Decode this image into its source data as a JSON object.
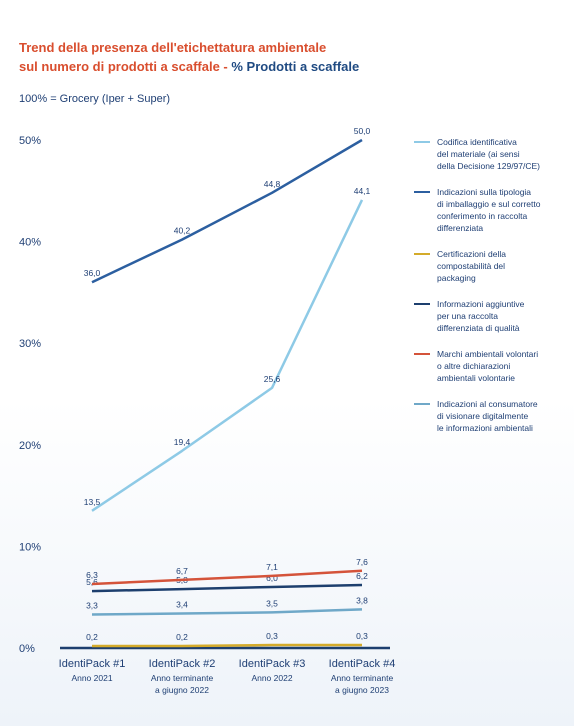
{
  "title": {
    "line1": "Trend della presenza dell'etichettatura ambientale",
    "line2_main": "sul numero di prodotti a scaffale - ",
    "line2_sub": "% Prodotti a scaffale"
  },
  "note": "100% = Grocery (Iper + Super)",
  "chart_data": {
    "type": "line",
    "title": "Trend della presenza dell'etichettatura ambientale sul numero di prodotti a scaffale - % Prodotti a scaffale",
    "ylim": [
      0,
      50
    ],
    "yticks": [
      0,
      10,
      20,
      30,
      40,
      50
    ],
    "ytick_labels": [
      "0%",
      "10%",
      "20%",
      "30%",
      "40%",
      "50%"
    ],
    "categories": [
      {
        "label": "IdentiPack #1",
        "sub": [
          "Anno 2021"
        ]
      },
      {
        "label": "IdentiPack #2",
        "sub": [
          "Anno terminante",
          "a giugno 2022"
        ]
      },
      {
        "label": "IdentiPack #3",
        "sub": [
          "Anno 2022"
        ]
      },
      {
        "label": "IdentiPack #4",
        "sub": [
          "Anno terminante",
          "a giugno 2023"
        ]
      }
    ],
    "legend_position": "right",
    "series": [
      {
        "name": "Codifica identificativa del materiale (ai sensi della Decisione 129/97/CE)",
        "legend_lines": [
          "Codifica identificativa",
          "del materiale (ai sensi",
          "della Decisione 129/97/CE)"
        ],
        "color": "#8ecae6",
        "values": [
          13.5,
          19.4,
          25.6,
          44.1
        ],
        "labels": [
          "13,5",
          "19,4",
          "25,6",
          "44,1"
        ]
      },
      {
        "name": "Indicazioni sulla tipologia di imballaggio e sul corretto conferimento in raccolta differenziata",
        "legend_lines": [
          "Indicazioni sulla tipologia",
          "di imballaggio e sul corretto",
          "conferimento in raccolta",
          "differenziata"
        ],
        "color": "#2c5fa0",
        "values": [
          36.0,
          40.2,
          44.8,
          50.0
        ],
        "labels": [
          "36,0",
          "40,2",
          "44,8",
          "50,0"
        ]
      },
      {
        "name": "Certificazioni della compostabilità del packaging",
        "legend_lines": [
          "Certificazioni della",
          "compostabilità del",
          "packaging"
        ],
        "color": "#d4ab2a",
        "values": [
          0.2,
          0.2,
          0.3,
          0.3
        ],
        "labels": [
          "0,2",
          "0,2",
          "0,3",
          "0,3"
        ]
      },
      {
        "name": "Informazioni aggiuntive per una raccolta differenziata di qualità",
        "legend_lines": [
          "Informazioni aggiuntive",
          "per una raccolta",
          "differenziata di qualità"
        ],
        "color": "#1d3f6e",
        "values": [
          5.6,
          5.8,
          6.0,
          6.2
        ],
        "labels": [
          "5,6",
          "5,8",
          "6,0",
          "6,2"
        ]
      },
      {
        "name": "Marchi ambientali volontari o altre dichiarazioni ambientali volontarie",
        "legend_lines": [
          "Marchi ambientali volontari",
          "o altre dichiarazioni",
          "ambientali volontarie"
        ],
        "color": "#d4533a",
        "values": [
          6.3,
          6.7,
          7.1,
          7.6
        ],
        "labels": [
          "6,3",
          "6,7",
          "7,1",
          "7,6"
        ]
      },
      {
        "name": "Indicazioni al consumatore di visionare digitalmente le informazioni ambientali",
        "legend_lines": [
          "Indicazioni al consumatore",
          "di visionare digitalmente",
          "le informazioni ambientali"
        ],
        "color": "#6fa8c8",
        "values": [
          3.3,
          3.4,
          3.5,
          3.8
        ],
        "labels": [
          "3,3",
          "3,4",
          "3,5",
          "3,8"
        ]
      }
    ]
  }
}
